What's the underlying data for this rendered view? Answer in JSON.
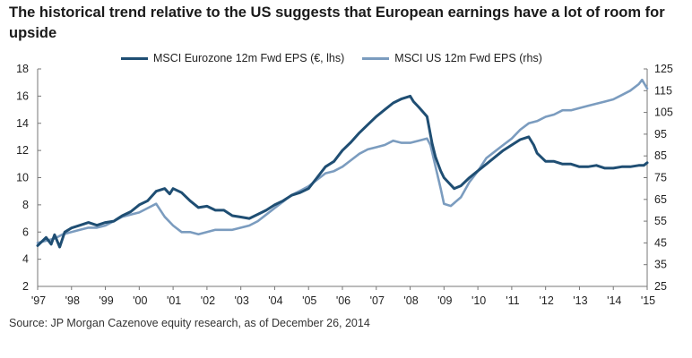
{
  "title": "The historical trend relative to the US suggests that European earnings have a lot of room for upside",
  "source": "Source: JP Morgan Cazenove equity research, as of December 26, 2014",
  "colors": {
    "eurozone": "#1f4e73",
    "us": "#7b9cbf",
    "axis": "#777777"
  },
  "chart_data": {
    "type": "line",
    "title": "The historical trend relative to the US suggests that European earnings have a lot of room for upside",
    "xlabel": "",
    "ylabel_left": "MSCI Eurozone 12m Fwd EPS (€)",
    "ylabel_right": "MSCI US 12m Fwd EPS",
    "xlim": [
      1997.0,
      2015.0
    ],
    "ylim_left": [
      2,
      18
    ],
    "ylim_right": [
      25,
      125
    ],
    "yticks_left": [
      "2",
      "4",
      "6",
      "8",
      "10",
      "12",
      "14",
      "16",
      "18"
    ],
    "yticks_right": [
      "25",
      "35",
      "45",
      "55",
      "65",
      "75",
      "85",
      "95",
      "105",
      "115",
      "125"
    ],
    "xticks": [
      "'97",
      "'98",
      "'99",
      "'00",
      "'01",
      "'02",
      "'03",
      "'04",
      "'05",
      "'06",
      "'07",
      "'08",
      "'09",
      "'10",
      "'11",
      "'12",
      "'13",
      "'14",
      "'15"
    ],
    "grid": false,
    "legend_position": "top",
    "series": [
      {
        "name": "MSCI Eurozone 12m Fwd EPS (€, lhs)",
        "axis": "left",
        "x": [
          1997.0,
          1997.25,
          1997.4,
          1997.5,
          1997.65,
          1997.8,
          1998.0,
          1998.25,
          1998.5,
          1998.75,
          1999.0,
          1999.25,
          1999.5,
          1999.75,
          2000.0,
          2000.25,
          2000.5,
          2000.75,
          2000.9,
          2001.0,
          2001.25,
          2001.5,
          2001.75,
          2002.0,
          2002.25,
          2002.5,
          2002.75,
          2003.0,
          2003.25,
          2003.5,
          2003.75,
          2004.0,
          2004.25,
          2004.5,
          2004.75,
          2005.0,
          2005.25,
          2005.5,
          2005.75,
          2006.0,
          2006.25,
          2006.5,
          2006.75,
          2007.0,
          2007.25,
          2007.5,
          2007.75,
          2008.0,
          2008.1,
          2008.25,
          2008.5,
          2008.65,
          2008.75,
          2008.9,
          2009.0,
          2009.15,
          2009.3,
          2009.5,
          2009.75,
          2010.0,
          2010.25,
          2010.5,
          2010.75,
          2011.0,
          2011.25,
          2011.5,
          2011.65,
          2011.75,
          2012.0,
          2012.25,
          2012.5,
          2012.75,
          2013.0,
          2013.25,
          2013.5,
          2013.75,
          2014.0,
          2014.25,
          2014.5,
          2014.75,
          2014.9,
          2015.0
        ],
        "values": [
          5.0,
          5.6,
          5.1,
          5.8,
          4.9,
          6.0,
          6.3,
          6.5,
          6.7,
          6.5,
          6.7,
          6.8,
          7.2,
          7.5,
          8.0,
          8.3,
          9.0,
          9.2,
          8.8,
          9.2,
          8.9,
          8.3,
          7.8,
          7.9,
          7.6,
          7.6,
          7.2,
          7.1,
          7.0,
          7.3,
          7.6,
          8.0,
          8.3,
          8.7,
          8.9,
          9.2,
          10.0,
          10.8,
          11.2,
          12.0,
          12.6,
          13.3,
          13.9,
          14.5,
          15.0,
          15.5,
          15.8,
          16.0,
          15.6,
          15.2,
          14.5,
          12.5,
          11.5,
          10.5,
          10.0,
          9.6,
          9.2,
          9.4,
          10.0,
          10.5,
          11.0,
          11.5,
          12.0,
          12.4,
          12.8,
          13.0,
          12.4,
          11.8,
          11.2,
          11.2,
          11.0,
          11.0,
          10.8,
          10.8,
          10.9,
          10.7,
          10.7,
          10.8,
          10.8,
          10.9,
          10.9,
          11.1
        ]
      },
      {
        "name": "MSCI US 12m Fwd EPS (rhs)",
        "axis": "right",
        "x": [
          1997.0,
          1997.25,
          1997.5,
          1997.75,
          1998.0,
          1998.25,
          1998.5,
          1998.75,
          1999.0,
          1999.25,
          1999.5,
          1999.75,
          2000.0,
          2000.25,
          2000.5,
          2000.75,
          2001.0,
          2001.25,
          2001.5,
          2001.75,
          2002.0,
          2002.25,
          2002.5,
          2002.75,
          2003.0,
          2003.25,
          2003.5,
          2003.75,
          2004.0,
          2004.25,
          2004.5,
          2004.75,
          2005.0,
          2005.25,
          2005.5,
          2005.75,
          2006.0,
          2006.25,
          2006.5,
          2006.75,
          2007.0,
          2007.25,
          2007.5,
          2007.75,
          2008.0,
          2008.25,
          2008.5,
          2008.6,
          2008.75,
          2008.9,
          2009.0,
          2009.2,
          2009.5,
          2009.75,
          2010.0,
          2010.25,
          2010.5,
          2010.75,
          2011.0,
          2011.25,
          2011.5,
          2011.75,
          2012.0,
          2012.25,
          2012.5,
          2012.75,
          2013.0,
          2013.25,
          2013.5,
          2013.75,
          2014.0,
          2014.25,
          2014.5,
          2014.75,
          2014.85,
          2015.0
        ],
        "values": [
          45,
          46,
          47,
          49,
          50,
          51,
          52,
          52,
          53,
          55,
          57,
          58,
          59,
          61,
          63,
          57,
          53,
          50,
          50,
          49,
          50,
          51,
          51,
          51,
          52,
          53,
          55,
          58,
          61,
          64,
          67,
          69,
          71,
          74,
          77,
          78,
          80,
          83,
          86,
          88,
          89,
          90,
          92,
          91,
          91,
          92,
          93,
          90,
          80,
          70,
          63,
          62,
          66,
          73,
          78,
          84,
          87,
          90,
          93,
          97,
          100,
          101,
          103,
          104,
          106,
          106,
          107,
          108,
          109,
          110,
          111,
          113,
          115,
          118,
          120,
          116
        ]
      }
    ]
  }
}
